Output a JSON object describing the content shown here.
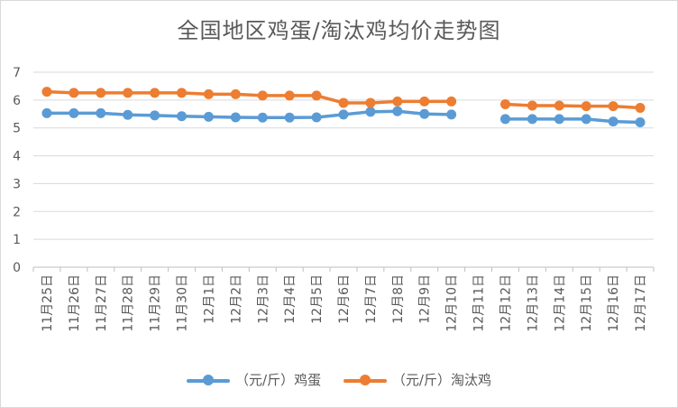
{
  "chart_data": {
    "type": "line",
    "title": "全国地区鸡蛋/淘汰鸡均价走势图",
    "categories": [
      "11月25日",
      "11月26日",
      "11月27日",
      "11月28日",
      "11月29日",
      "11月30日",
      "12月1日",
      "12月2日",
      "12月3日",
      "12月4日",
      "12月5日",
      "12月6日",
      "12月7日",
      "12月8日",
      "12月9日",
      "12月10日",
      "12月11日",
      "12月12日",
      "12月13日",
      "12月14日",
      "12月15日",
      "12月16日",
      "12月17日"
    ],
    "ylim": [
      0,
      7
    ],
    "yticks": [
      "0",
      "1",
      "2",
      "3",
      "4",
      "5",
      "6",
      "7"
    ],
    "grid": true,
    "legend_position": "bottom",
    "series": [
      {
        "name": "（元/斤）鸡蛋",
        "color": "#5b9bd5",
        "values": [
          5.53,
          5.53,
          5.53,
          5.47,
          5.45,
          5.42,
          5.4,
          5.38,
          5.37,
          5.37,
          5.38,
          5.48,
          5.58,
          5.6,
          5.5,
          5.48,
          null,
          5.32,
          5.32,
          5.32,
          5.32,
          5.23,
          5.2
        ]
      },
      {
        "name": "（元/斤）淘汰鸡",
        "color": "#ed7d31",
        "values": [
          6.3,
          6.26,
          6.26,
          6.26,
          6.26,
          6.26,
          6.21,
          6.21,
          6.16,
          6.16,
          6.16,
          5.9,
          5.9,
          5.95,
          5.95,
          5.95,
          null,
          5.85,
          5.8,
          5.8,
          5.78,
          5.78,
          5.72
        ]
      }
    ]
  }
}
